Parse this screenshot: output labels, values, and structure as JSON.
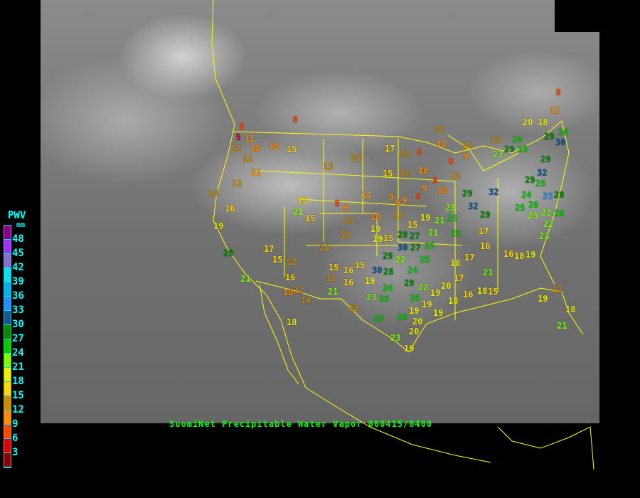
{
  "caption": "SuomiNet Precipitable Water Vapor 060415/0400",
  "legend": {
    "title": "PWV",
    "unit": "mm",
    "labels": [
      "48",
      "45",
      "42",
      "39",
      "36",
      "33",
      "30",
      "27",
      "24",
      "21",
      "18",
      "15",
      "12",
      "9",
      "6",
      "3"
    ],
    "colors": [
      "#8b008b",
      "#9b30ff",
      "#8470d0",
      "#00e5ee",
      "#00b2ee",
      "#1e90ff",
      "#0a5a96",
      "#008b00",
      "#00cd00",
      "#7fff00",
      "#eeee00",
      "#ffd700",
      "#cd8c00",
      "#ff8c00",
      "#ff4500",
      "#dd0000",
      "#8b0000"
    ]
  },
  "stations": [
    "8",
    "5",
    "11",
    "12",
    "10",
    "12",
    "10",
    "15",
    "8",
    "11",
    "12",
    "14",
    "16",
    "19",
    "29",
    "21",
    "17",
    "15",
    "12",
    "16",
    "10",
    "12",
    "14",
    "15",
    "21",
    "15",
    "13",
    "14",
    "15",
    "12",
    "21",
    "16",
    "12",
    "8",
    "9",
    "13",
    "12",
    "11",
    "13",
    "17",
    "12",
    "8",
    "15",
    "12",
    "10",
    "8",
    "12",
    "11",
    "8",
    "12",
    "10",
    "9",
    "6",
    "9",
    "9",
    "10",
    "13",
    "15",
    "19",
    "21",
    "21",
    "23",
    "32",
    "29",
    "25",
    "25",
    "29",
    "32",
    "17",
    "16",
    "17",
    "18",
    "17",
    "20",
    "19",
    "19",
    "19",
    "18",
    "16",
    "18",
    "15",
    "21",
    "16",
    "18",
    "19",
    "23",
    "29",
    "26",
    "25",
    "20",
    "18",
    "29",
    "26",
    "30",
    "29",
    "29",
    "32",
    "25",
    "24",
    "26",
    "25",
    "23",
    "33",
    "28",
    "22",
    "26",
    "22",
    "23",
    "8",
    "11",
    "14",
    "9",
    "13",
    "19",
    "12",
    "18",
    "21",
    "18",
    "15",
    "29",
    "27",
    "27",
    "30",
    "29",
    "30",
    "28",
    "19",
    "24",
    "23",
    "25",
    "29",
    "22",
    "26",
    "19",
    "20",
    "26",
    "25",
    "23",
    "20",
    "19",
    "15",
    "16",
    "19",
    "9",
    "19",
    "25",
    "25",
    "24",
    "22"
  ]
}
